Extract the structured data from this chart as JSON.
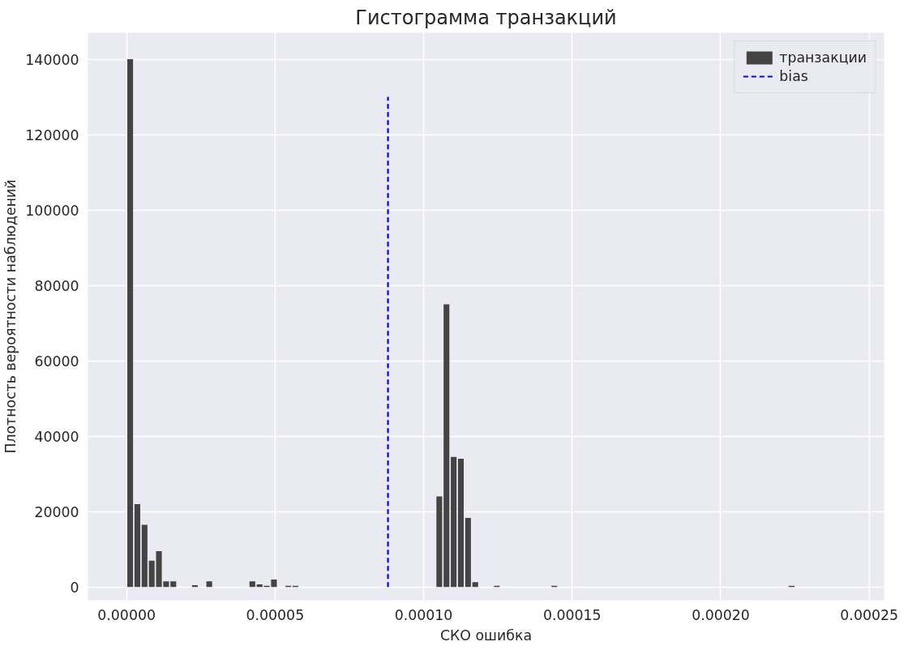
{
  "chart_data": {
    "type": "histogram",
    "title": "Гистограмма транзакций",
    "xlabel": "СКО ошибка",
    "ylabel": "Плотность вероятности наблюдений",
    "bins": [
      0,
      2.42e-06,
      4.84e-06,
      7.26e-06,
      9.68e-06,
      1.21e-05,
      1.452e-05,
      1.694e-05,
      1.936e-05,
      2.178e-05,
      2.42e-05,
      2.662e-05,
      2.904e-05,
      3.146e-05,
      3.388e-05,
      3.63e-05,
      3.872e-05,
      4.114e-05,
      4.356e-05,
      4.598e-05,
      4.84e-05,
      5.082e-05,
      5.324e-05,
      5.566e-05,
      5.808e-05,
      6.05e-05,
      6.292e-05,
      6.534e-05,
      6.776e-05,
      7.018e-05,
      7.26e-05,
      7.502e-05,
      7.744e-05,
      7.986e-05,
      8.228e-05,
      8.47e-05,
      8.712e-05,
      8.954e-05,
      9.196e-05,
      9.438e-05,
      9.68e-05,
      9.922e-05,
      0.00010164,
      0.00010406,
      0.00010648,
      0.0001089,
      0.00011132,
      0.00011374,
      0.00011616,
      0.00011858,
      0.000121,
      0.00012342,
      0.00012584,
      0.00012826,
      0.00013068,
      0.0001331,
      0.00013552,
      0.00013794,
      0.00014036,
      0.00014278,
      0.0001452,
      0.00014762,
      0.00015004,
      0.00015246,
      0.00015488,
      0.0001573,
      0.00015972,
      0.00016214,
      0.00016456,
      0.00016698,
      0.0001694,
      0.00017182,
      0.00017424,
      0.00017666,
      0.00017908,
      0.0001815,
      0.00018392,
      0.00018634,
      0.00018876,
      0.00019118,
      0.0001936,
      0.00019602,
      0.00019844,
      0.00020086,
      0.00020328,
      0.0002057,
      0.00020812,
      0.00021054,
      0.00021296,
      0.00021538,
      0.0002178,
      0.00022022,
      0.00022264,
      0.00022506
    ],
    "series": [
      {
        "name": "транзакции",
        "color": "#444444",
        "values": [
          140000,
          22000,
          16500,
          7000,
          9500,
          1500,
          1500,
          0,
          0,
          500,
          0,
          1500,
          0,
          0,
          0,
          0,
          0,
          1500,
          700,
          300,
          2000,
          0,
          300,
          300,
          0,
          0,
          0,
          0,
          0,
          0,
          0,
          0,
          0,
          0,
          0,
          0,
          0,
          0,
          0,
          0,
          0,
          0,
          0,
          24000,
          75000,
          34500,
          34000,
          18300,
          1300,
          0,
          0,
          300,
          0,
          0,
          0,
          0,
          0,
          0,
          0,
          300,
          0,
          0,
          0,
          0,
          0,
          0,
          0,
          0,
          0,
          0,
          0,
          0,
          0,
          0,
          0,
          0,
          0,
          0,
          0,
          0,
          0,
          0,
          0,
          0,
          0,
          0,
          0,
          0,
          0,
          0,
          0,
          0,
          300
        ]
      },
      {
        "type": "line",
        "name": "bias",
        "color": "#0000ff",
        "line_style": "dashed",
        "x": [
          8.8e-05,
          8.8e-05
        ],
        "values": [
          0,
          130000
        ]
      }
    ],
    "xlim": [
      -1.3e-05,
      0.000255
    ],
    "ylim": [
      -3500,
      147000
    ],
    "xticks": [
      {
        "value": 0,
        "label": "0.00000"
      },
      {
        "value": 5e-05,
        "label": "0.00005"
      },
      {
        "value": 0.0001,
        "label": "0.00010"
      },
      {
        "value": 0.00015,
        "label": "0.00015"
      },
      {
        "value": 0.0002,
        "label": "0.00020"
      },
      {
        "value": 0.00025,
        "label": "0.00025"
      }
    ],
    "yticks": [
      0,
      20000,
      40000,
      60000,
      80000,
      100000,
      120000,
      140000
    ],
    "grid": true,
    "legend": "top right"
  }
}
